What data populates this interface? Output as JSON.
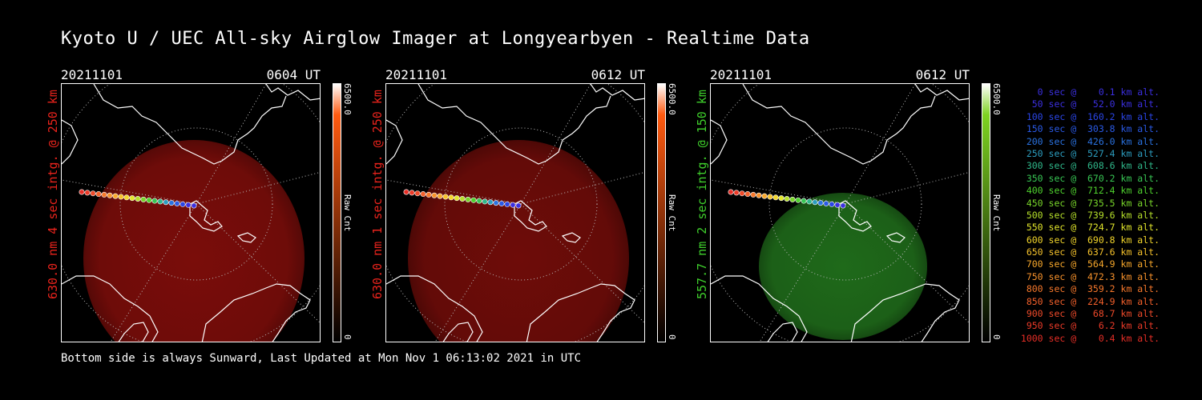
{
  "title": "Kyoto U / UEC All-sky Airglow Imager at Longyearbyen - Realtime Data",
  "footer": "Bottom side is always Sunward, Last Updated at Mon Nov  1 06:13:02 2021 in UTC",
  "panels": [
    {
      "date": "20211101",
      "time": "0604 UT",
      "side_label": "630.0 nm 4 sec intg. @ 250 km",
      "side_color": "#e8231c",
      "colorbar_max": "6500.0",
      "colorbar_min": "0",
      "colorbar_label": "Raw Cnt",
      "glow_color": "#7a0d0a",
      "cbar_color": "#ff5a10"
    },
    {
      "date": "20211101",
      "time": "0612 UT",
      "side_label": "630.0 nm 1 sec intg. @ 250 km",
      "side_color": "#e8231c",
      "colorbar_max": "6500.0",
      "colorbar_min": "0",
      "colorbar_label": "Raw Cnt",
      "glow_color": "#6e0c09",
      "cbar_color": "#ff5a10"
    },
    {
      "date": "20211101",
      "time": "0612 UT",
      "side_label": "557.7 nm 2 sec intg. @ 150 km",
      "side_color": "#3fcf2c",
      "colorbar_max": "6500.0",
      "colorbar_min": "0",
      "colorbar_label": "Raw Cnt",
      "glow_color": "#1f6a1a",
      "cbar_color": "#7ed321"
    }
  ],
  "legend": [
    {
      "text": "   0 sec @    0.1 km alt.",
      "color": "#3b2fe0"
    },
    {
      "text": "  50 sec @   52.0 km alt.",
      "color": "#3b2fe0"
    },
    {
      "text": " 100 sec @  160.2 km alt.",
      "color": "#2a45e6"
    },
    {
      "text": " 150 sec @  303.8 km alt.",
      "color": "#2a5ae6"
    },
    {
      "text": " 200 sec @  426.0 km alt.",
      "color": "#2a72e0"
    },
    {
      "text": " 250 sec @  527.4 km alt.",
      "color": "#2c9dbf"
    },
    {
      "text": " 300 sec @  608.6 km alt.",
      "color": "#2fb78a"
    },
    {
      "text": " 350 sec @  670.2 km alt.",
      "color": "#38c654"
    },
    {
      "text": " 400 sec @  712.4 km alt.",
      "color": "#4fd22e"
    },
    {
      "text": " 450 sec @  735.5 km alt.",
      "color": "#79d62a"
    },
    {
      "text": " 500 sec @  739.6 km alt.",
      "color": "#b6e02a"
    },
    {
      "text": " 550 sec @  724.7 km alt.",
      "color": "#e2e62b"
    },
    {
      "text": " 600 sec @  690.8 km alt.",
      "color": "#f3d62b"
    },
    {
      "text": " 650 sec @  637.6 km alt.",
      "color": "#f6c22b"
    },
    {
      "text": " 700 sec @  564.9 km alt.",
      "color": "#f8a82b"
    },
    {
      "text": " 750 sec @  472.3 km alt.",
      "color": "#f8922b"
    },
    {
      "text": " 800 sec @  359.2 km alt.",
      "color": "#f7782b"
    },
    {
      "text": " 850 sec @  224.9 km alt.",
      "color": "#f4602b"
    },
    {
      "text": " 900 sec @   68.7 km alt.",
      "color": "#ef4a2a"
    },
    {
      "text": " 950 sec @    6.2 km alt.",
      "color": "#eb3a28"
    },
    {
      "text": "1000 sec @    0.4 km alt.",
      "color": "#e62e26"
    }
  ]
}
